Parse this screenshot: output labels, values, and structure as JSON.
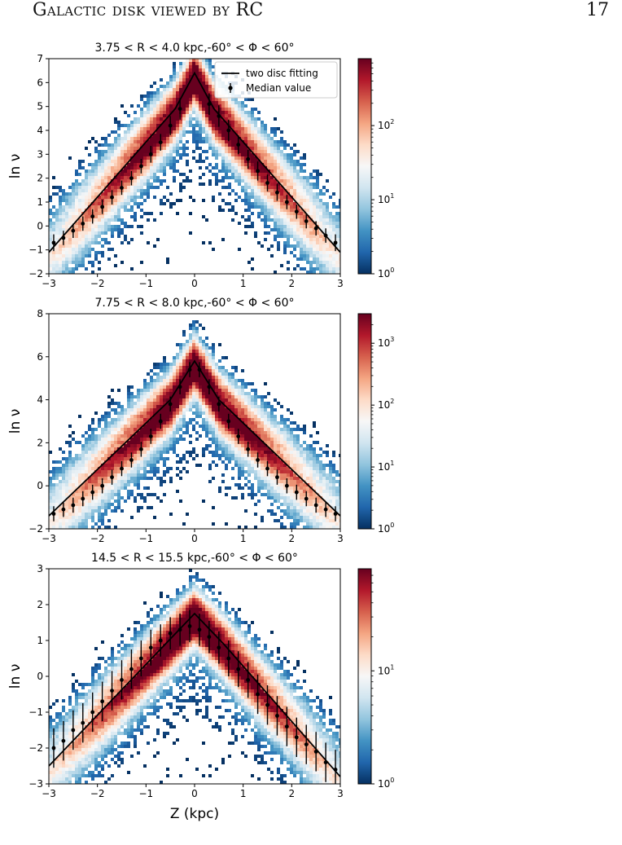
{
  "header": {
    "running_title": "Galactic disk viewed by RC",
    "page_number": "17"
  },
  "colors": {
    "cmap": [
      "#053061",
      "#2166ac",
      "#4393c3",
      "#92c5de",
      "#d1e5f0",
      "#f7f7f7",
      "#fddbc7",
      "#f4a582",
      "#d6604d",
      "#b2182b",
      "#67001f"
    ],
    "fit_line": "#000000",
    "median_marker": "#000000"
  },
  "chart_data": [
    {
      "type": "heatmap",
      "title": "3.75 < R < 4.0 kpc,-60° < Φ < 60°",
      "ylabel": "ln ν",
      "xlabel": "",
      "xlim": [
        -3,
        3
      ],
      "ylim": [
        -2,
        7
      ],
      "xticks": [
        -3,
        -2,
        -1,
        0,
        1,
        2,
        3
      ],
      "yticks": [
        -2,
        -1,
        0,
        1,
        2,
        3,
        4,
        5,
        6,
        7
      ],
      "legend": {
        "placement": "top-right",
        "entries": [
          "two disc fitting",
          "Median value"
        ]
      },
      "colorbar": {
        "scale": "log",
        "min": 1,
        "max": 800,
        "ticks": [
          {
            "value": 1,
            "base": "10",
            "exp": "0"
          },
          {
            "value": 10,
            "base": "10",
            "exp": "1"
          },
          {
            "value": 100,
            "base": "10",
            "exp": "2"
          }
        ]
      },
      "fit": {
        "peak": [
          0,
          6.4
        ],
        "left": [
          -3,
          -1.1
        ],
        "right": [
          3,
          -1.1
        ],
        "knee_left": [
          -0.4,
          4.9
        ],
        "knee_right": [
          0.4,
          4.9
        ]
      },
      "median": {
        "x": [
          -2.9,
          -2.7,
          -2.5,
          -2.3,
          -2.1,
          -1.9,
          -1.7,
          -1.5,
          -1.3,
          -1.1,
          -0.9,
          -0.7,
          -0.5,
          -0.3,
          0.3,
          0.5,
          0.7,
          0.9,
          1.1,
          1.3,
          1.5,
          1.7,
          1.9,
          2.1,
          2.3,
          2.5,
          2.7,
          2.9
        ],
        "y": [
          -0.7,
          -0.5,
          -0.2,
          0.1,
          0.4,
          0.8,
          1.2,
          1.6,
          2.0,
          2.5,
          3.0,
          3.5,
          4.2,
          4.9,
          5.1,
          4.6,
          4.0,
          3.4,
          2.8,
          2.3,
          1.8,
          1.4,
          1.0,
          0.6,
          0.2,
          -0.1,
          -0.4,
          -0.7
        ],
        "yerr": [
          0.35,
          0.3,
          0.3,
          0.3,
          0.3,
          0.3,
          0.3,
          0.3,
          0.3,
          0.3,
          0.35,
          0.35,
          0.4,
          0.45,
          0.45,
          0.45,
          0.45,
          0.4,
          0.4,
          0.4,
          0.35,
          0.35,
          0.3,
          0.3,
          0.3,
          0.3,
          0.3,
          0.35
        ]
      }
    },
    {
      "type": "heatmap",
      "title": "7.75 < R < 8.0 kpc,-60° < Φ < 60°",
      "ylabel": "ln ν",
      "xlabel": "",
      "xlim": [
        -3,
        3
      ],
      "ylim": [
        -2,
        8
      ],
      "xticks": [
        -3,
        -2,
        -1,
        0,
        1,
        2,
        3
      ],
      "yticks": [
        -2,
        0,
        2,
        4,
        6,
        8
      ],
      "colorbar": {
        "scale": "log",
        "min": 1,
        "max": 3000,
        "ticks": [
          {
            "value": 1,
            "base": "10",
            "exp": "0"
          },
          {
            "value": 10,
            "base": "10",
            "exp": "1"
          },
          {
            "value": 100,
            "base": "10",
            "exp": "2"
          },
          {
            "value": 1000,
            "base": "10",
            "exp": "3"
          }
        ]
      },
      "fit": {
        "peak": [
          0,
          5.8
        ],
        "left": [
          -3,
          -1.4
        ],
        "right": [
          3,
          -1.4
        ],
        "knee_left": [
          -0.5,
          4.0
        ],
        "knee_right": [
          0.5,
          4.0
        ]
      },
      "median": {
        "x": [
          -2.9,
          -2.7,
          -2.5,
          -2.3,
          -2.1,
          -1.9,
          -1.7,
          -1.5,
          -1.3,
          -1.1,
          -0.9,
          -0.7,
          -0.5,
          -0.3,
          -0.1,
          0.1,
          0.3,
          0.5,
          0.7,
          0.9,
          1.1,
          1.3,
          1.5,
          1.7,
          1.9,
          2.1,
          2.3,
          2.5,
          2.7,
          2.9
        ],
        "y": [
          -1.3,
          -1.1,
          -0.9,
          -0.6,
          -0.3,
          0.0,
          0.4,
          0.8,
          1.2,
          1.7,
          2.3,
          3.0,
          3.8,
          4.6,
          5.4,
          5.4,
          4.6,
          3.8,
          3.0,
          2.3,
          1.7,
          1.2,
          0.8,
          0.4,
          0.0,
          -0.3,
          -0.6,
          -0.9,
          -1.1,
          -1.3
        ],
        "yerr": [
          0.35,
          0.35,
          0.35,
          0.35,
          0.35,
          0.35,
          0.35,
          0.35,
          0.35,
          0.35,
          0.35,
          0.35,
          0.35,
          0.35,
          0.35,
          0.35,
          0.35,
          0.35,
          0.35,
          0.35,
          0.35,
          0.35,
          0.35,
          0.35,
          0.35,
          0.35,
          0.35,
          0.35,
          0.35,
          0.35
        ]
      }
    },
    {
      "type": "heatmap",
      "title": "14.5 < R < 15.5 kpc,-60° < Φ < 60°",
      "ylabel": "ln ν",
      "xlabel": "Z (kpc)",
      "xlim": [
        -3,
        3
      ],
      "ylim": [
        -3,
        3
      ],
      "xticks": [
        -3,
        -2,
        -1,
        0,
        1,
        2,
        3
      ],
      "yticks": [
        -3,
        -2,
        -1,
        0,
        1,
        2,
        3
      ],
      "colorbar": {
        "scale": "log",
        "min": 1,
        "max": 80,
        "ticks": [
          {
            "value": 1,
            "base": "10",
            "exp": "0"
          },
          {
            "value": 10,
            "base": "10",
            "exp": "1"
          }
        ]
      },
      "fit": {
        "peak": [
          0,
          1.75
        ],
        "left": [
          -3,
          -2.5
        ],
        "right": [
          3,
          -2.8
        ],
        "knee_left": [
          -0.6,
          0.9
        ],
        "knee_right": [
          0.6,
          0.9
        ]
      },
      "median": {
        "x": [
          -2.9,
          -2.7,
          -2.5,
          -2.3,
          -2.1,
          -1.9,
          -1.7,
          -1.5,
          -1.3,
          -1.1,
          -0.9,
          -0.7,
          -0.5,
          -0.3,
          -0.1,
          0.1,
          0.3,
          0.5,
          0.7,
          0.9,
          1.1,
          1.3,
          1.5,
          1.7,
          1.9,
          2.1,
          2.3,
          2.5,
          2.7,
          2.9
        ],
        "y": [
          -2.0,
          -1.8,
          -1.5,
          -1.3,
          -1.0,
          -0.7,
          -0.4,
          -0.1,
          0.2,
          0.5,
          0.8,
          1.0,
          1.2,
          1.3,
          1.4,
          1.3,
          1.1,
          0.8,
          0.5,
          0.2,
          -0.1,
          -0.5,
          -0.8,
          -1.1,
          -1.4,
          -1.7,
          -1.9,
          -2.1,
          -2.4,
          -2.6
        ],
        "yerr": [
          0.55,
          0.55,
          0.55,
          0.55,
          0.55,
          0.55,
          0.55,
          0.55,
          0.55,
          0.5,
          0.5,
          0.45,
          0.45,
          0.45,
          0.45,
          0.45,
          0.45,
          0.45,
          0.5,
          0.5,
          0.5,
          0.55,
          0.55,
          0.55,
          0.55,
          0.55,
          0.55,
          0.55,
          0.55,
          0.55
        ]
      }
    }
  ]
}
